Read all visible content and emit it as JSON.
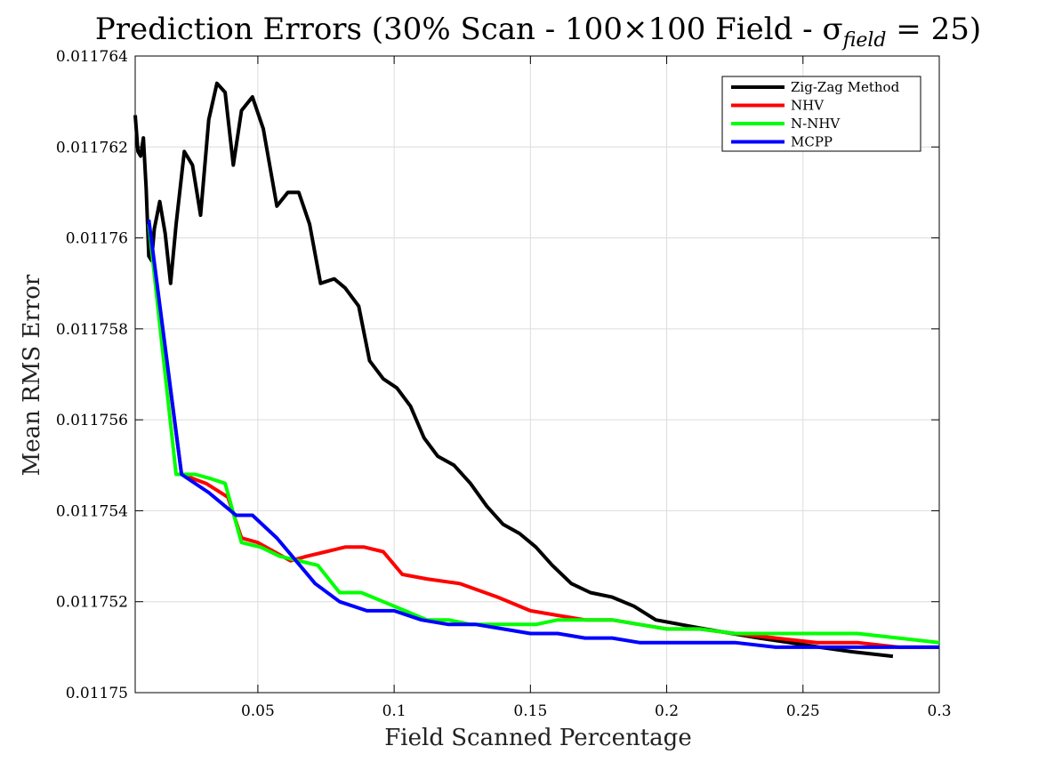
{
  "chart_data": {
    "type": "line",
    "title": "Prediction Errors (30% Scan - 100×100 Field - σ",
    "title_sub": "field",
    "title_tail": " = 25)",
    "xlabel": "Field Scanned Percentage",
    "ylabel": "Mean RMS Error",
    "xlim": [
      0.005,
      0.3
    ],
    "ylim": [
      0.01175,
      0.011764
    ],
    "xticks": [
      0.05,
      0.1,
      0.15,
      0.2,
      0.25,
      0.3
    ],
    "xtick_labels": [
      "0.05",
      "0.1",
      "0.15",
      "0.2",
      "0.25",
      "0.3"
    ],
    "yticks": [
      0.01175,
      0.011752,
      0.011754,
      0.011756,
      0.011758,
      0.01176,
      0.011762,
      0.011764
    ],
    "ytick_labels": [
      "0.01175",
      "0.011752",
      "0.011754",
      "0.011756",
      "0.011758",
      "0.01176",
      "0.011762",
      "0.011764"
    ],
    "grid": true,
    "legend_position": "top-right",
    "series": [
      {
        "name": "Zig-Zag Method",
        "color": "#000000",
        "x": [
          0.005,
          0.006,
          0.007,
          0.008,
          0.009,
          0.01,
          0.011,
          0.012,
          0.014,
          0.016,
          0.018,
          0.02,
          0.023,
          0.026,
          0.029,
          0.032,
          0.035,
          0.038,
          0.041,
          0.044,
          0.048,
          0.052,
          0.057,
          0.061,
          0.065,
          0.069,
          0.073,
          0.078,
          0.082,
          0.087,
          0.091,
          0.096,
          0.101,
          0.106,
          0.111,
          0.116,
          0.122,
          0.128,
          0.134,
          0.14,
          0.146,
          0.152,
          0.158,
          0.165,
          0.172,
          0.18,
          0.188,
          0.196,
          0.205,
          0.214,
          0.224,
          0.234,
          0.245,
          0.256,
          0.268,
          0.283
        ],
        "values": [
          0.0117627,
          0.0117619,
          0.0117618,
          0.0117622,
          0.0117611,
          0.0117596,
          0.0117595,
          0.0117602,
          0.0117608,
          0.0117601,
          0.011759,
          0.0117603,
          0.0117619,
          0.0117616,
          0.0117605,
          0.0117626,
          0.0117634,
          0.0117632,
          0.0117616,
          0.0117628,
          0.0117631,
          0.0117624,
          0.0117607,
          0.011761,
          0.011761,
          0.0117603,
          0.011759,
          0.0117591,
          0.0117589,
          0.0117585,
          0.0117573,
          0.0117569,
          0.0117567,
          0.0117563,
          0.0117556,
          0.0117552,
          0.011755,
          0.0117546,
          0.0117541,
          0.0117537,
          0.0117535,
          0.0117532,
          0.0117528,
          0.0117524,
          0.0117522,
          0.0117521,
          0.0117519,
          0.0117516,
          0.0117515,
          0.0117514,
          0.0117513,
          0.0117512,
          0.0117511,
          0.011751,
          0.0117509,
          0.0117508
        ]
      },
      {
        "name": "NHV",
        "color": "#ff0000",
        "x": [
          0.01,
          0.022,
          0.031,
          0.039,
          0.044,
          0.05,
          0.056,
          0.062,
          0.068,
          0.075,
          0.082,
          0.089,
          0.096,
          0.103,
          0.112,
          0.124,
          0.138,
          0.15,
          0.16,
          0.17,
          0.18,
          0.19,
          0.2,
          0.212,
          0.225,
          0.24,
          0.255,
          0.27,
          0.285,
          0.3
        ],
        "values": [
          0.0117603,
          0.0117548,
          0.0117546,
          0.0117543,
          0.0117534,
          0.0117533,
          0.0117531,
          0.0117529,
          0.011753,
          0.0117531,
          0.0117532,
          0.0117532,
          0.0117531,
          0.0117526,
          0.0117525,
          0.0117524,
          0.0117521,
          0.0117518,
          0.0117517,
          0.0117516,
          0.0117516,
          0.0117515,
          0.0117514,
          0.0117514,
          0.0117513,
          0.0117512,
          0.0117511,
          0.0117511,
          0.011751,
          0.011751
        ]
      },
      {
        "name": "N-NHV",
        "color": "#00ff00",
        "x": [
          0.01,
          0.02,
          0.027,
          0.033,
          0.038,
          0.044,
          0.051,
          0.058,
          0.065,
          0.072,
          0.08,
          0.088,
          0.096,
          0.104,
          0.112,
          0.12,
          0.128,
          0.136,
          0.144,
          0.152,
          0.16,
          0.17,
          0.18,
          0.19,
          0.2,
          0.212,
          0.225,
          0.24,
          0.255,
          0.27,
          0.285,
          0.3
        ],
        "values": [
          0.0117603,
          0.0117548,
          0.0117548,
          0.0117547,
          0.0117546,
          0.0117533,
          0.0117532,
          0.011753,
          0.0117529,
          0.0117528,
          0.0117522,
          0.0117522,
          0.011752,
          0.0117518,
          0.0117516,
          0.0117516,
          0.0117515,
          0.0117515,
          0.0117515,
          0.0117515,
          0.0117516,
          0.0117516,
          0.0117516,
          0.0117515,
          0.0117514,
          0.0117514,
          0.0117513,
          0.0117513,
          0.0117513,
          0.0117513,
          0.0117512,
          0.0117511
        ]
      },
      {
        "name": "MCPP",
        "color": "#0000ff",
        "x": [
          0.01,
          0.022,
          0.032,
          0.042,
          0.048,
          0.057,
          0.064,
          0.071,
          0.08,
          0.09,
          0.1,
          0.11,
          0.12,
          0.13,
          0.14,
          0.15,
          0.16,
          0.17,
          0.18,
          0.19,
          0.2,
          0.212,
          0.225,
          0.24,
          0.255,
          0.27,
          0.285,
          0.3
        ],
        "values": [
          0.0117604,
          0.0117548,
          0.0117544,
          0.0117539,
          0.0117539,
          0.0117534,
          0.0117529,
          0.0117524,
          0.011752,
          0.0117518,
          0.0117518,
          0.0117516,
          0.0117515,
          0.0117515,
          0.0117514,
          0.0117513,
          0.0117513,
          0.0117512,
          0.0117512,
          0.0117511,
          0.0117511,
          0.0117511,
          0.0117511,
          0.011751,
          0.011751,
          0.011751,
          0.011751,
          0.011751
        ]
      }
    ]
  }
}
